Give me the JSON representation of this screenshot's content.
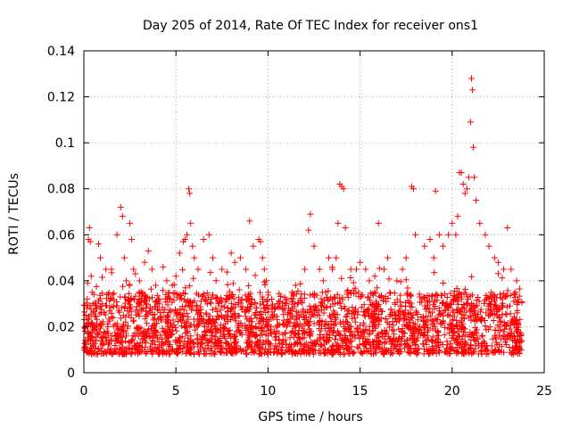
{
  "chart_data": {
    "type": "scatter",
    "title": "Day 205 of 2014, Rate Of TEC Index for receiver ons1",
    "xlabel": "GPS time / hours",
    "ylabel": "ROTI / TECUs",
    "xlim": [
      0,
      25
    ],
    "ylim": [
      0,
      0.14
    ],
    "xticks": [
      0,
      5,
      10,
      15,
      20,
      25
    ],
    "xtick_labels": [
      "0",
      "5",
      "10",
      "15",
      "20",
      "25"
    ],
    "yticks": [
      0,
      0.02,
      0.04,
      0.06,
      0.08,
      0.1,
      0.12,
      0.14
    ],
    "ytick_labels": [
      "0",
      "0.02",
      "0.04",
      "0.06",
      "0.08",
      "0.1",
      "0.12",
      "0.14"
    ],
    "grid": true,
    "marker": "+",
    "series": [
      {
        "name": "ROTI",
        "color": "#ff0000",
        "x": [
          0.1,
          0.2,
          0.25,
          0.3,
          0.35,
          0.4,
          0.45,
          0.5,
          0.7,
          0.8,
          0.9,
          1.0,
          1.2,
          1.5,
          1.8,
          2.0,
          2.1,
          2.2,
          2.3,
          2.5,
          2.6,
          2.7,
          2.8,
          3.0,
          3.3,
          3.5,
          3.7,
          3.9,
          4.0,
          4.3,
          4.5,
          4.8,
          5.0,
          5.2,
          5.4,
          5.5,
          5.6,
          5.7,
          5.75,
          5.8,
          5.9,
          6.0,
          6.2,
          6.5,
          6.8,
          7.0,
          7.5,
          8.0,
          8.2,
          8.5,
          8.8,
          9.0,
          9.2,
          9.5,
          9.6,
          9.7,
          9.8,
          9.9,
          10.0,
          10.2,
          10.5,
          10.8,
          11.0,
          11.3,
          11.5,
          12.0,
          12.2,
          12.3,
          12.5,
          12.8,
          13.0,
          13.3,
          13.5,
          13.7,
          13.8,
          13.9,
          14.0,
          14.1,
          14.2,
          14.5,
          14.8,
          15.0,
          15.3,
          15.5,
          15.8,
          16.0,
          16.3,
          16.5,
          17.0,
          17.3,
          17.5,
          17.8,
          17.9,
          18.0,
          18.5,
          18.8,
          19.0,
          19.1,
          19.3,
          19.5,
          19.8,
          20.0,
          20.2,
          20.3,
          20.4,
          20.5,
          20.6,
          20.7,
          20.8,
          20.9,
          21.0,
          21.05,
          21.1,
          21.15,
          21.2,
          21.3,
          21.5,
          21.8,
          22.0,
          22.3,
          22.5,
          22.8,
          23.0,
          23.2,
          23.5
        ],
        "y": [
          0.025,
          0.039,
          0.058,
          0.063,
          0.057,
          0.042,
          0.035,
          0.03,
          0.028,
          0.056,
          0.05,
          0.03,
          0.045,
          0.045,
          0.06,
          0.072,
          0.068,
          0.05,
          0.04,
          0.065,
          0.058,
          0.045,
          0.043,
          0.035,
          0.048,
          0.053,
          0.045,
          0.038,
          0.03,
          0.046,
          0.04,
          0.038,
          0.042,
          0.052,
          0.057,
          0.058,
          0.06,
          0.08,
          0.078,
          0.065,
          0.055,
          0.05,
          0.045,
          0.058,
          0.06,
          0.05,
          0.045,
          0.052,
          0.048,
          0.05,
          0.045,
          0.066,
          0.055,
          0.058,
          0.057,
          0.05,
          0.045,
          0.04,
          0.035,
          0.032,
          0.03,
          0.028,
          0.03,
          0.035,
          0.038,
          0.045,
          0.062,
          0.069,
          0.055,
          0.045,
          0.04,
          0.05,
          0.045,
          0.05,
          0.065,
          0.082,
          0.081,
          0.08,
          0.063,
          0.045,
          0.045,
          0.048,
          0.045,
          0.04,
          0.042,
          0.065,
          0.045,
          0.05,
          0.04,
          0.045,
          0.05,
          0.081,
          0.08,
          0.06,
          0.055,
          0.058,
          0.05,
          0.079,
          0.06,
          0.055,
          0.06,
          0.065,
          0.06,
          0.068,
          0.087,
          0.087,
          0.082,
          0.078,
          0.08,
          0.085,
          0.109,
          0.128,
          0.123,
          0.098,
          0.085,
          0.075,
          0.065,
          0.06,
          0.055,
          0.05,
          0.048,
          0.045,
          0.063,
          0.045,
          0.04
        ],
        "baseline_band": [
          0.008,
          0.035
        ]
      }
    ]
  }
}
